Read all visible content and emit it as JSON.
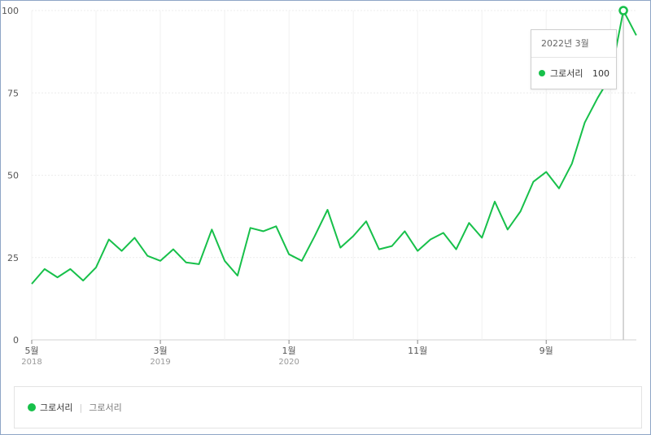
{
  "tooltip": {
    "title": "2022년 3월",
    "series_name": "그로서리",
    "value": "100"
  },
  "legend": {
    "series_name": "그로서리",
    "filter_label": "그로서리"
  },
  "colors": {
    "line": "#17c04a",
    "grid": "#ececec",
    "guide": "#c8c8c8"
  },
  "chart_data": {
    "type": "line",
    "title": "",
    "xlabel": "",
    "ylabel": "",
    "ylim": [
      0,
      100
    ],
    "yticks": [
      "0",
      "25",
      "50",
      "75",
      "100"
    ],
    "xticks": [
      {
        "label": "5월",
        "sub": "2018",
        "index": 0
      },
      {
        "label": "3월",
        "sub": "2019",
        "index": 10
      },
      {
        "label": "1월",
        "sub": "2020",
        "index": 20
      },
      {
        "label": "11월",
        "sub": "",
        "index": 30
      },
      {
        "label": "9월",
        "sub": "",
        "index": 40
      }
    ],
    "highlight_index": 46,
    "grid": true,
    "legend_position": "bottom",
    "series": [
      {
        "name": "그로서리",
        "x": [
          "2018-05",
          "2018-06",
          "2018-07",
          "2018-08",
          "2018-09",
          "2018-10",
          "2018-11",
          "2018-12",
          "2019-01",
          "2019-02",
          "2019-03",
          "2019-04",
          "2019-05",
          "2019-06",
          "2019-07",
          "2019-08",
          "2019-09",
          "2019-10",
          "2019-11",
          "2019-12",
          "2020-01",
          "2020-02",
          "2020-03",
          "2020-04",
          "2020-05",
          "2020-06",
          "2020-07",
          "2020-08",
          "2020-09",
          "2020-10",
          "2020-11",
          "2020-12",
          "2021-01",
          "2021-02",
          "2021-03",
          "2021-04",
          "2021-05",
          "2021-06",
          "2021-07",
          "2021-08",
          "2021-09",
          "2021-10",
          "2021-11",
          "2021-12",
          "2022-01",
          "2022-02",
          "2022-03",
          "2022-04"
        ],
        "values": [
          17,
          21.5,
          19,
          21.5,
          18,
          22,
          30.5,
          27,
          31,
          25.5,
          24,
          27.5,
          23.5,
          23,
          33.5,
          24,
          19.5,
          34,
          33,
          34.5,
          26,
          24,
          31.5,
          39.5,
          28,
          31.5,
          36,
          27.5,
          28.5,
          33,
          27,
          30.5,
          32.5,
          27.5,
          35.5,
          31,
          42,
          33.5,
          39,
          48,
          51,
          46,
          53.5,
          66,
          73.5,
          80,
          100,
          92.5
        ]
      }
    ]
  }
}
